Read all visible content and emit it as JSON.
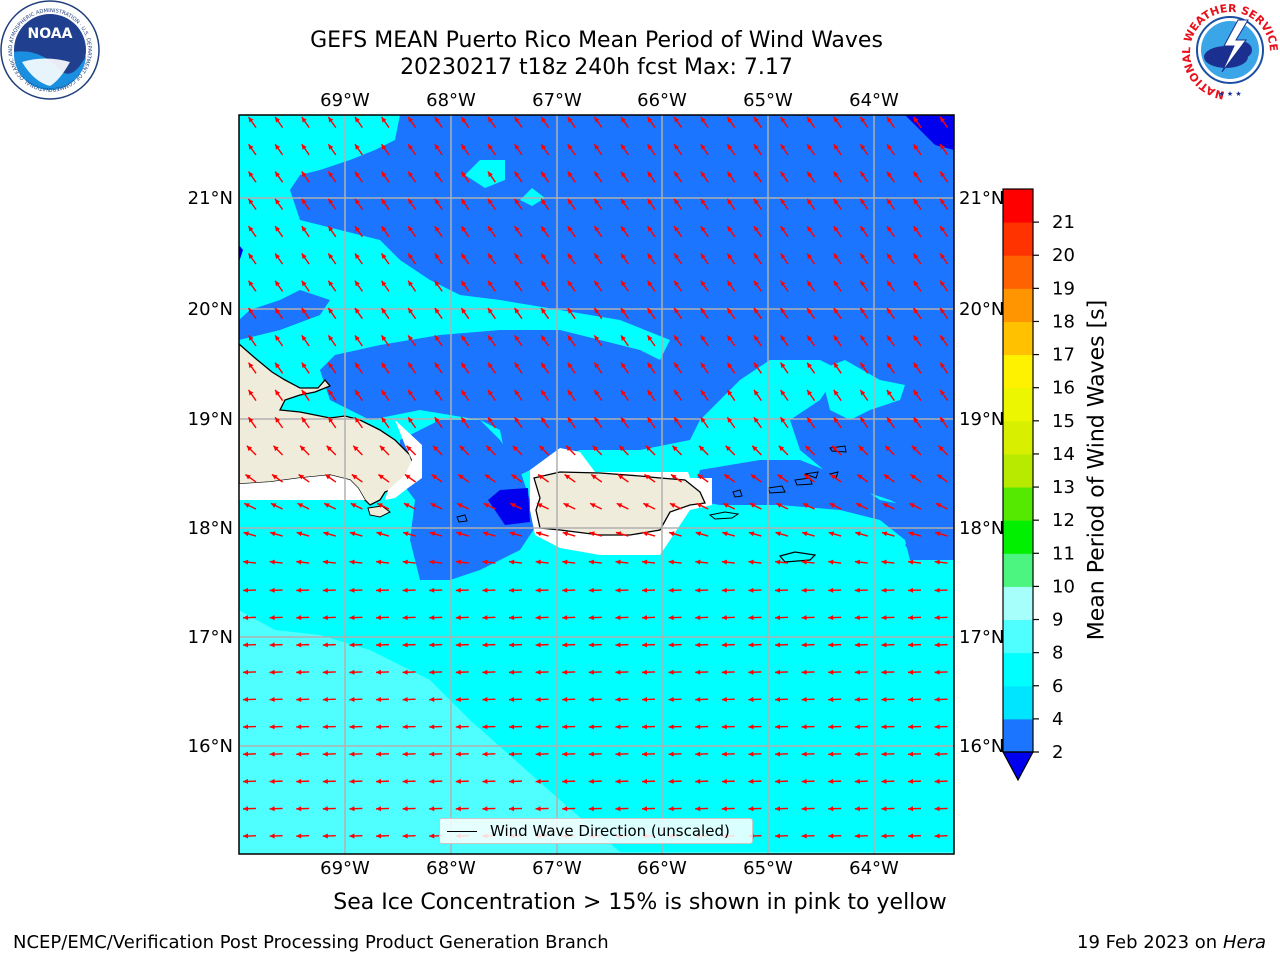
{
  "header": {
    "title_line1": "GEFS MEAN Puerto Rico Mean Period of Wind Waves",
    "title_line2": "20230217 t18z 240h fcst   Max: 7.17"
  },
  "logos": {
    "noaa_text": "NOAA",
    "noaa_ring_text": "NATIONAL OCEANIC AND ATMOSPHERIC ADMINISTRATION · U.S. DEPARTMENT OF COMMERCE",
    "nws_ring_text": "NATIONAL WEATHER SERVICE"
  },
  "map": {
    "lon_labels": [
      "69°W",
      "68°W",
      "67°W",
      "66°W",
      "65°W",
      "64°W"
    ],
    "lat_labels": [
      "21°N",
      "20°N",
      "19°N",
      "18°N",
      "17°N",
      "16°N"
    ],
    "legend_label": "Wind Wave Direction (unscaled)",
    "colors": {
      "land": "#efecdc",
      "deep_blue": "#0000ee",
      "blue": "#1b75ff",
      "cyan": "#00ffff",
      "light_cyan": "#4ffeff",
      "arrow": "#ff0000",
      "grid": "#b0b0b0"
    }
  },
  "colorbar": {
    "title": "Mean Period of Wind Waves [s]",
    "levels": [
      2,
      4,
      6,
      8,
      9,
      10,
      11,
      12,
      13,
      14,
      15,
      16,
      17,
      18,
      19,
      20,
      21
    ],
    "colors": [
      "#1b75ff",
      "#00e5ff",
      "#00ffff",
      "#4ffeff",
      "#a6fffa",
      "#4cf580",
      "#00f000",
      "#55e800",
      "#b8ea00",
      "#d8f000",
      "#ecf600",
      "#fff200",
      "#ffc100",
      "#ff9500",
      "#ff6200",
      "#ff3300",
      "#ff0000"
    ],
    "extend_color": "#0000ee"
  },
  "subtitle": "Sea Ice Concentration > 15% is shown in pink to yellow",
  "footer": {
    "left": "NCEP/EMC/Verification Post Processing Product Generation Branch",
    "right_date": "19 Feb 2023 on",
    "right_host": "Hera"
  }
}
